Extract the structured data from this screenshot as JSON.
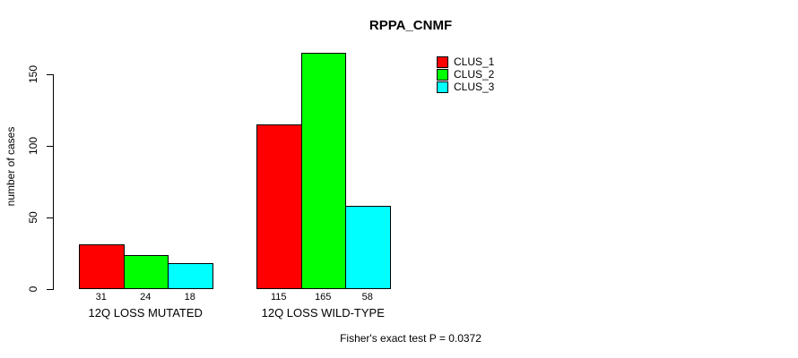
{
  "chart_data": {
    "type": "bar",
    "title": "RPPA_CNMF",
    "ylabel": "number of cases",
    "xlabel": "",
    "categories": [
      "12Q LOSS MUTATED",
      "12Q LOSS WILD-TYPE"
    ],
    "series": [
      {
        "name": "CLUS_1",
        "color": "#FF0000",
        "values": [
          31,
          115
        ]
      },
      {
        "name": "CLUS_2",
        "color": "#00FF00",
        "values": [
          24,
          165
        ]
      },
      {
        "name": "CLUS_3",
        "color": "#00FFFF",
        "values": [
          18,
          58
        ]
      }
    ],
    "y_ticks": [
      0,
      50,
      100,
      150
    ],
    "ylim": [
      0,
      165
    ],
    "bar_value_labels": true,
    "grid": false,
    "legend_position": "top-right"
  },
  "footer": {
    "text": "Fisher's exact test P = 0.0372"
  }
}
